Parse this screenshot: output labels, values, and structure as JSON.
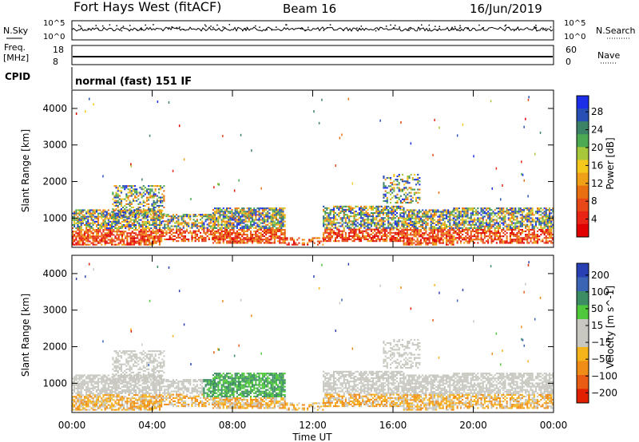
{
  "header": {
    "title": "Fort Hays West (fitACF)",
    "beam": "Beam 16",
    "date": "16/Jun/2019"
  },
  "strip_nsky": {
    "left_label": "N.Sky",
    "right_label": "N.Search",
    "left_ticks": [
      "10^5",
      "10^0"
    ],
    "right_ticks": [
      "10^5",
      "10^0"
    ]
  },
  "strip_freq": {
    "left_label_1": "Freq.",
    "left_label_2": "[MHz]",
    "right_label": "Nave",
    "left_ticks": [
      "18",
      "8"
    ],
    "right_ticks": [
      "60",
      "0"
    ]
  },
  "cpid": {
    "label": "CPID",
    "value": "normal (fast) 151 IF"
  },
  "chart_data": [
    {
      "type": "heatmap",
      "name": "power",
      "ylabel": "Slant Range [km]",
      "yticks": [
        "1000",
        "2000",
        "3000",
        "4000"
      ],
      "ylim": [
        200,
        4500
      ],
      "xlim": [
        0,
        24
      ],
      "colorbar": {
        "label": "Power [dB]",
        "ticks": [
          "4",
          "8",
          "12",
          "16",
          "20",
          "24",
          "28"
        ],
        "colors": [
          "#1c2ee8",
          "#2850b4",
          "#3c8266",
          "#4cab52",
          "#a8c83c",
          "#f5c81c",
          "#f0a018",
          "#e87010",
          "#e84818",
          "#e82414",
          "#e00000"
        ]
      }
    },
    {
      "type": "heatmap",
      "name": "velocity",
      "ylabel": "Slant Range [km]",
      "yticks": [
        "1000",
        "2000",
        "3000",
        "4000"
      ],
      "ylim": [
        200,
        4500
      ],
      "xlim": [
        0,
        24
      ],
      "colorbar": {
        "label": "Velocity [m s^-1]",
        "ticks": [
          "200",
          "100",
          "50",
          "15",
          "−15",
          "−50",
          "−100",
          "−200"
        ],
        "colors": [
          "#2840b4",
          "#3c64b4",
          "#3c8c64",
          "#50c83c",
          "#c8c8c0",
          "#c8c8c0",
          "#f5b41c",
          "#f08c18",
          "#e85c14",
          "#e02000"
        ]
      }
    }
  ],
  "xaxis": {
    "label": "Time UT",
    "ticks": [
      "00:00",
      "04:00",
      "08:00",
      "12:00",
      "16:00",
      "20:00",
      "00:00"
    ]
  }
}
